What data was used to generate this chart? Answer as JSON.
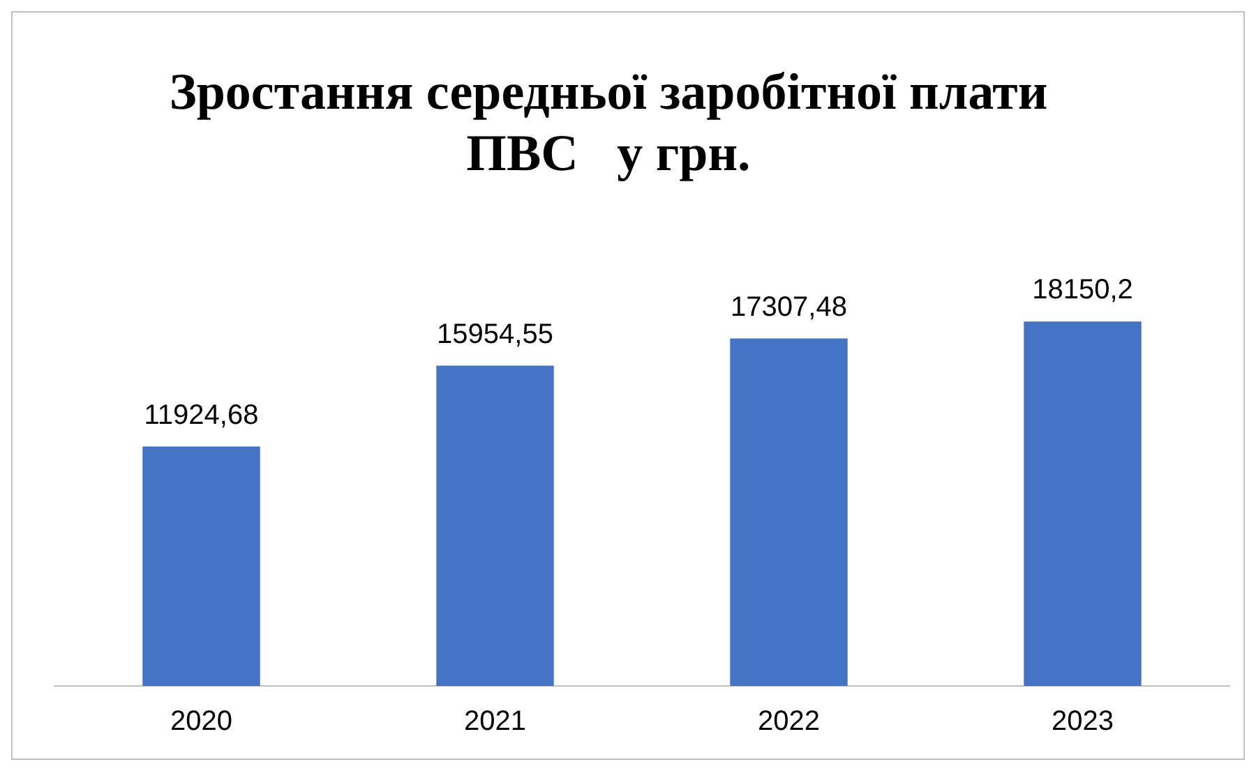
{
  "chart_data": {
    "type": "bar",
    "title": "Зростання середньої заробітної плати ПВС   у грн.",
    "categories": [
      "2020",
      "2021",
      "2022",
      "2023"
    ],
    "values": [
      11924.68,
      15954.55,
      17307.48,
      18150.2
    ],
    "value_labels": [
      "11924,68",
      "15954,55",
      "17307,48",
      "18150,2"
    ],
    "color": "#4472c4",
    "grid": false,
    "legend": false
  }
}
